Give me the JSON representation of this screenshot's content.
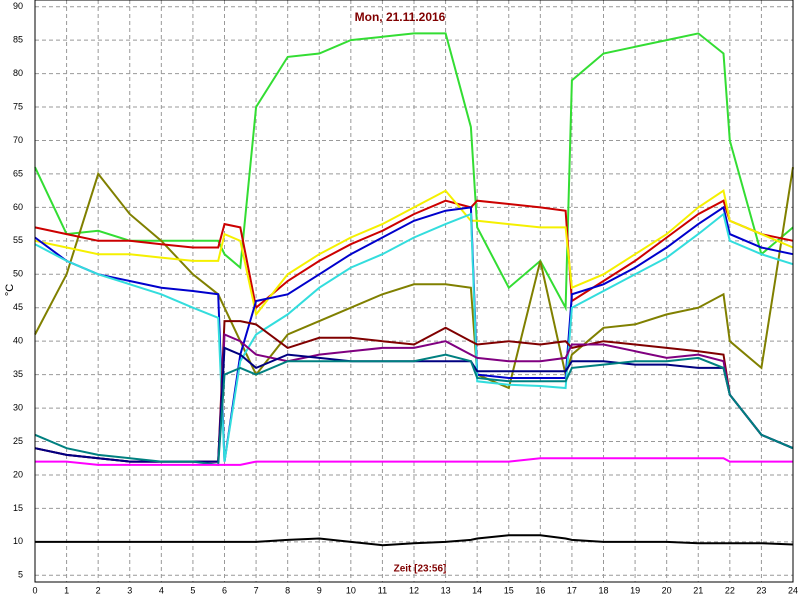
{
  "chart_data": {
    "type": "line",
    "title": "Mon, 21.11.2016",
    "xlabel": "Zeit [23:56]",
    "ylabel": "°C",
    "x": [
      0,
      1,
      2,
      3,
      4,
      5,
      5.8,
      6,
      6.5,
      7,
      8,
      9,
      10,
      11,
      12,
      13,
      13.8,
      14,
      15,
      16,
      16.8,
      17,
      18,
      19,
      20,
      21,
      21.8,
      22,
      23,
      24
    ],
    "series": [
      {
        "color": "#33dd33",
        "values": [
          66,
          56,
          56.5,
          55,
          55,
          55,
          55,
          53,
          51,
          75,
          82.5,
          83,
          85,
          85.5,
          86,
          86,
          72,
          57,
          48,
          52,
          45,
          79,
          83,
          84,
          85,
          86,
          83,
          70,
          53,
          57
        ]
      },
      {
        "color": "#808000",
        "values": [
          41,
          50,
          65,
          59,
          55,
          50,
          47,
          45,
          40,
          35,
          41,
          43,
          45,
          47,
          48.5,
          48.5,
          48,
          35,
          33,
          52,
          35,
          38,
          42,
          42.5,
          44,
          45,
          47,
          40,
          36,
          66
        ]
      },
      {
        "color": "#cc0000",
        "values": [
          57,
          56,
          55,
          55,
          54.5,
          54,
          54,
          57.5,
          57,
          45,
          49,
          52,
          54.5,
          56.5,
          59,
          61,
          60,
          61,
          60.5,
          60,
          59.5,
          46,
          49,
          52,
          55.5,
          59,
          61,
          58,
          56,
          55
        ]
      },
      {
        "color": "#f5f000",
        "values": [
          55,
          54,
          53,
          53,
          52.5,
          52,
          52,
          56,
          55,
          44,
          50,
          53,
          55.5,
          57.5,
          60,
          62.5,
          58,
          58,
          57.5,
          57,
          57,
          48,
          50,
          53,
          56,
          60,
          62.5,
          58,
          56,
          54
        ]
      },
      {
        "color": "#0000cc",
        "values": [
          55.5,
          52,
          50,
          49,
          48,
          47.5,
          47,
          22,
          38,
          46,
          47,
          50,
          53,
          55.5,
          58,
          59.5,
          60,
          35,
          34.5,
          34.5,
          34.5,
          47,
          48.5,
          51,
          54,
          57.5,
          60,
          56,
          54,
          53
        ]
      },
      {
        "color": "#33dddd",
        "values": [
          54.5,
          52,
          50,
          48.5,
          47,
          45,
          43.5,
          22,
          37,
          41,
          44,
          48,
          51,
          53,
          55.5,
          57.5,
          59,
          34,
          33.5,
          33.3,
          33,
          45,
          47.5,
          50,
          52.5,
          56,
          59,
          55,
          53,
          51.5
        ]
      },
      {
        "color": "#800000",
        "values": [
          24,
          23,
          22.5,
          22,
          22,
          22,
          22,
          43,
          43,
          42.5,
          39,
          40.5,
          40.5,
          40,
          39.5,
          42,
          40,
          39.5,
          40,
          39.5,
          40,
          39,
          40,
          39.5,
          39,
          38.5,
          38,
          32,
          26,
          24
        ]
      },
      {
        "color": "#800080",
        "values": [
          24,
          23,
          22.5,
          22,
          22,
          22,
          22,
          41,
          40,
          38,
          37,
          38,
          38.5,
          39,
          39,
          40,
          38,
          37.5,
          37,
          37,
          37.5,
          39.5,
          39.5,
          38.5,
          37.5,
          38,
          37,
          32,
          26,
          24
        ]
      },
      {
        "color": "#000080",
        "values": [
          24,
          23,
          22.5,
          22,
          22,
          22,
          22,
          39,
          38,
          36,
          38,
          37.5,
          37,
          37,
          37,
          37,
          37,
          35.5,
          35.5,
          35.5,
          35.5,
          37,
          37,
          36.5,
          36.5,
          36,
          36,
          32,
          26,
          24
        ]
      },
      {
        "color": "#008080",
        "values": [
          26,
          24,
          23,
          22.5,
          22,
          22,
          21.5,
          35,
          36,
          35,
          37,
          37,
          37,
          37,
          37,
          38,
          37,
          34.5,
          34,
          34,
          34,
          36,
          36.5,
          37,
          37,
          37.5,
          36,
          32,
          26,
          24
        ]
      },
      {
        "color": "#ff00ff",
        "values": [
          22,
          22,
          21.5,
          21.5,
          21.5,
          21.5,
          21.5,
          21.5,
          21.5,
          22,
          22,
          22,
          22,
          22,
          22,
          22,
          22,
          22,
          22,
          22.5,
          22.5,
          22.5,
          22.5,
          22.5,
          22.5,
          22.5,
          22.5,
          22,
          22,
          22
        ]
      },
      {
        "color": "#000000",
        "values": [
          10,
          10,
          10,
          10,
          10,
          10,
          10,
          10,
          10,
          10,
          10.3,
          10.5,
          10,
          9.5,
          9.8,
          10,
          10.3,
          10.5,
          11,
          11,
          10.5,
          10.3,
          10,
          10,
          10,
          9.8,
          9.8,
          9.8,
          9.8,
          9.6
        ]
      }
    ],
    "xlim": [
      0,
      24
    ],
    "xticks": [
      0,
      1,
      2,
      3,
      4,
      5,
      6,
      7,
      8,
      9,
      10,
      11,
      12,
      13,
      14,
      15,
      16,
      17,
      18,
      19,
      20,
      21,
      22,
      23,
      24
    ],
    "ylim": [
      4,
      91
    ],
    "yticks": [
      5,
      10,
      15,
      20,
      25,
      30,
      35,
      40,
      45,
      50,
      55,
      60,
      65,
      70,
      75,
      80,
      85,
      90
    ],
    "grid": true
  }
}
